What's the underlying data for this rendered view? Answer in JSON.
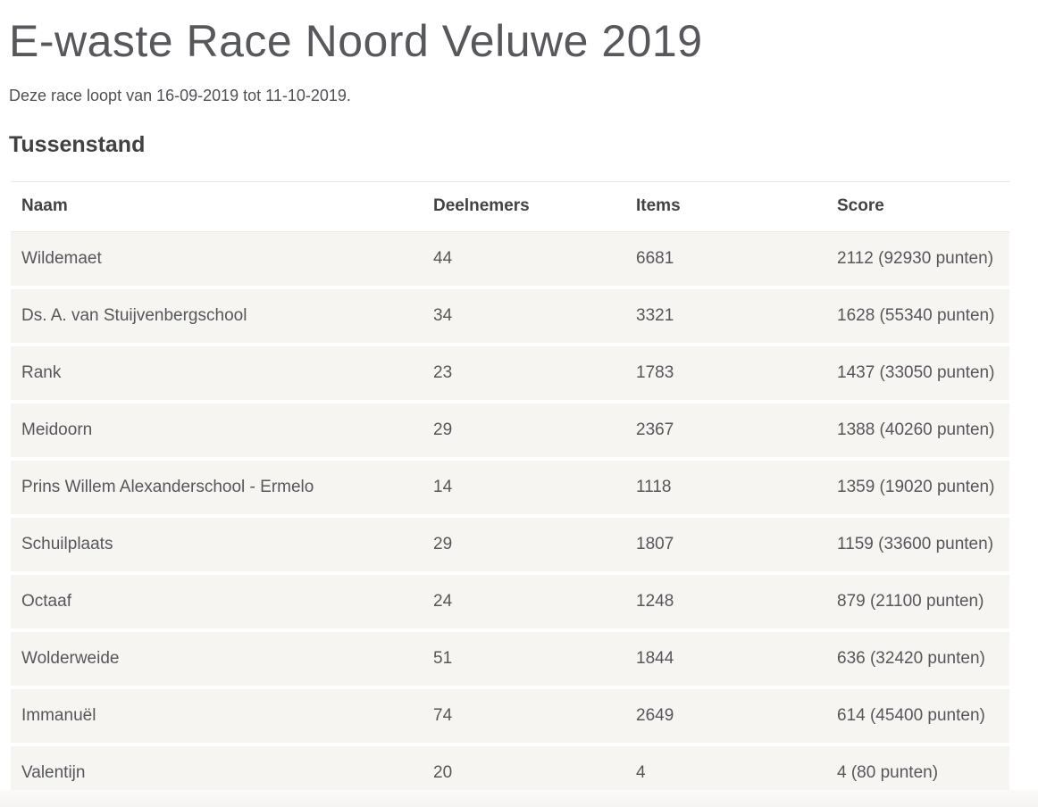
{
  "header": {
    "title": "E-waste Race Noord Veluwe 2019",
    "subtitle": "Deze race loopt van 16-09-2019 tot 11-10-2019."
  },
  "standings": {
    "heading": "Tussenstand",
    "columns": [
      "Naam",
      "Deelnemers",
      "Items",
      "Score"
    ],
    "rows": [
      {
        "naam": "Wildemaet",
        "deelnemers": "44",
        "items": "6681",
        "score": "2112 (92930 punten)"
      },
      {
        "naam": "Ds. A. van Stuijvenbergschool",
        "deelnemers": "34",
        "items": "3321",
        "score": "1628 (55340 punten)"
      },
      {
        "naam": "Rank",
        "deelnemers": "23",
        "items": "1783",
        "score": "1437 (33050 punten)"
      },
      {
        "naam": "Meidoorn",
        "deelnemers": "29",
        "items": "2367",
        "score": "1388 (40260 punten)"
      },
      {
        "naam": "Prins Willem Alexanderschool - Ermelo",
        "deelnemers": "14",
        "items": "1118",
        "score": "1359 (19020 punten)"
      },
      {
        "naam": "Schuilplaats",
        "deelnemers": "29",
        "items": "1807",
        "score": "1159 (33600 punten)"
      },
      {
        "naam": "Octaaf",
        "deelnemers": "24",
        "items": "1248",
        "score": "879 (21100 punten)"
      },
      {
        "naam": "Wolderweide",
        "deelnemers": "51",
        "items": "1844",
        "score": "636 (32420 punten)"
      },
      {
        "naam": "Immanuël",
        "deelnemers": "74",
        "items": "2649",
        "score": "614 (45400 punten)"
      },
      {
        "naam": "Valentijn",
        "deelnemers": "20",
        "items": "4",
        "score": "4 (80 punten)"
      }
    ]
  },
  "colors": {
    "title_text": "#56585c",
    "heading_text": "#3f4143",
    "body_text": "#55575b",
    "row_background": "#f6f5f2",
    "row_divider": "#ebe9e5",
    "table_top_border": "#e9e7e3",
    "footer_band": "#f5f4f2"
  }
}
